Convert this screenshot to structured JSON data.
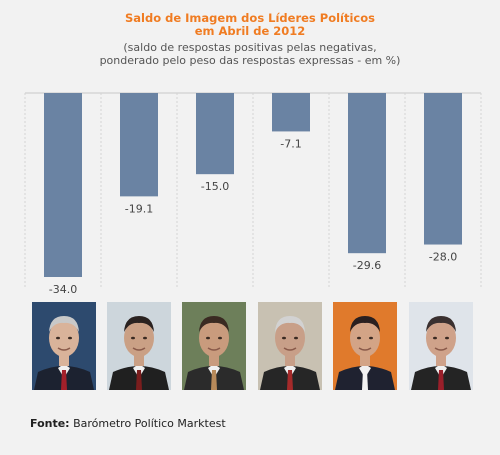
{
  "title_line1": "Saldo de Imagem dos Líderes Políticos",
  "title_line2": "em Abril de 2012",
  "subtitle_line1": "(saldo de respostas positivas pelas negativas,",
  "subtitle_line2": "ponderado pelo peso das respostas expressas - em %)",
  "source_label": "Fonte:",
  "source_text": "Barómetro Político Marktest",
  "colors": {
    "bar": "#6a83a3",
    "title": "#f07c22"
  },
  "chart_data": {
    "type": "bar",
    "categories": [
      "",
      "",
      "",
      "",
      "",
      ""
    ],
    "values": [
      -34.0,
      -19.1,
      -15.0,
      -7.1,
      -29.6,
      -28.0
    ],
    "value_labels": [
      "-34.0",
      "-19.1",
      "-15.0",
      "-7.1",
      "-29.6",
      "-28.0"
    ],
    "title": "Saldo de Imagem dos Líderes Políticos em Abril de 2012",
    "xlabel": "",
    "ylabel": "",
    "ylim": [
      -35,
      0
    ],
    "grid": true,
    "legend": "none"
  },
  "photos": [
    {
      "name": "leader-photo-1",
      "bg": "#2d4a6e",
      "skin": "#d9b39a",
      "hair": "#c8c8c8",
      "suit": "#1c2230",
      "tie": "#a3202a"
    },
    {
      "name": "leader-photo-2",
      "bg": "#cdd6dc",
      "skin": "#caa085",
      "hair": "#2a2220",
      "suit": "#202020",
      "tie": "#7a1d1d"
    },
    {
      "name": "leader-photo-3",
      "bg": "#6d7f5a",
      "skin": "#c99b7d",
      "hair": "#3a2a22",
      "suit": "#2b2b2b",
      "tie": "#b88a5a"
    },
    {
      "name": "leader-photo-4",
      "bg": "#c8c1b2",
      "skin": "#c89f88",
      "hair": "#d2d2d2",
      "suit": "#262626",
      "tie": "#a52a2a"
    },
    {
      "name": "leader-photo-5",
      "bg": "#e07a2c",
      "skin": "#d3a486",
      "hair": "#2a2020",
      "suit": "#1f2230",
      "tie": "#f2f2f2"
    },
    {
      "name": "leader-photo-6",
      "bg": "#dfe4ea",
      "skin": "#cfa28a",
      "hair": "#3a3030",
      "suit": "#242424",
      "tie": "#9a1f2a"
    }
  ]
}
